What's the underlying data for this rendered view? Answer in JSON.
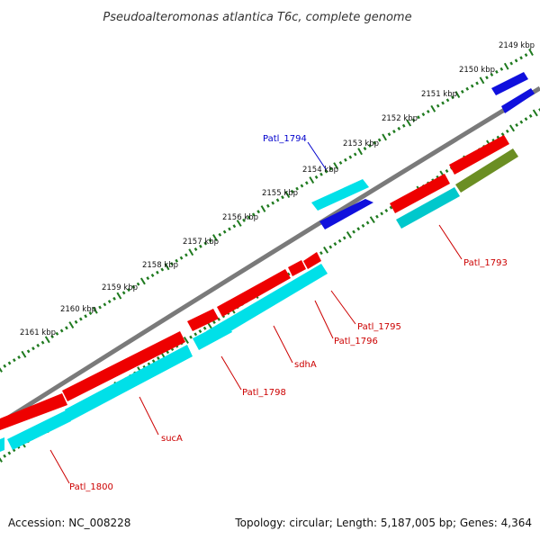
{
  "title": "Pseudoalteromonas atlantica T6c, complete genome",
  "accession": "Accession: NC_008228",
  "summary": "Topology: circular; Length: 5,187,005 bp; Genes: 4,364",
  "colors": {
    "backbone": "#7a7a7a",
    "tick": "#1f7a1f",
    "cds": "#ee0000",
    "gene": "#00e0e8",
    "other": "#1010dd",
    "olive": "#6b8e23",
    "label_red": "#cc0000",
    "label_blue": "#0000cc"
  },
  "kbp_labels": [
    "2149 kbp",
    "2150 kbp",
    "2151 kbp",
    "2152 kbp",
    "2153 kbp",
    "2154 kbp",
    "2155 kbp",
    "2156 kbp",
    "2157 kbp",
    "2158 kbp",
    "2159 kbp",
    "2160 kbp",
    "2161 kbp"
  ],
  "feature_labels": [
    {
      "id": "f1794",
      "text": "Patl_1794",
      "color": "label_blue"
    },
    {
      "id": "f1793",
      "text": "Patl_1793",
      "color": "label_red"
    },
    {
      "id": "f1795",
      "text": "Patl_1795",
      "color": "label_red"
    },
    {
      "id": "f1796",
      "text": "Patl_1796",
      "color": "label_red"
    },
    {
      "id": "fsdhA",
      "text": "sdhA",
      "color": "label_red"
    },
    {
      "id": "f1798",
      "text": "Patl_1798",
      "color": "label_red"
    },
    {
      "id": "fsucA",
      "text": "sucA",
      "color": "label_red"
    },
    {
      "id": "f1800",
      "text": "Patl_1800",
      "color": "label_red"
    }
  ]
}
